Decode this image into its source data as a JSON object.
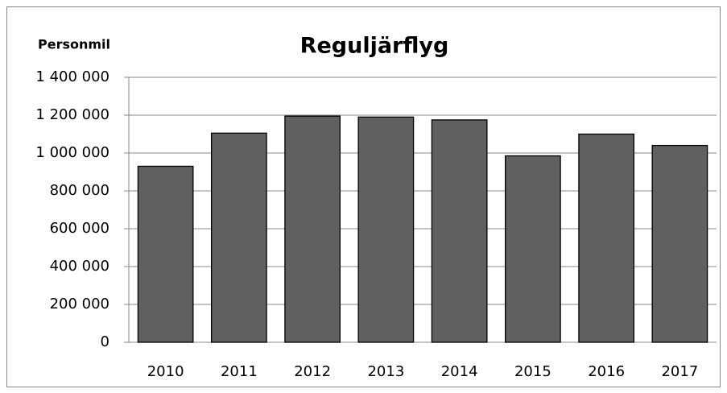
{
  "chart_data": {
    "type": "bar",
    "title": "Reguljärflyg",
    "y_axis_label": "Personmil",
    "categories": [
      "2010",
      "2011",
      "2012",
      "2013",
      "2014",
      "2015",
      "2016",
      "2017"
    ],
    "values": [
      930000,
      1105000,
      1195000,
      1190000,
      1175000,
      985000,
      1100000,
      1040000
    ],
    "color": "#606060",
    "ylim": [
      0,
      1400000
    ],
    "yticks": [
      0,
      {
        "value": 200000,
        "label": "200 000"
      },
      {
        "value": 400000,
        "label": "400 000"
      },
      {
        "value": 600000,
        "label": "600 000"
      },
      {
        "value": 800000,
        "label": "800 000"
      },
      {
        "value": 1000000,
        "label": "1 000 000"
      },
      {
        "value": 1200000,
        "label": "1 200 000"
      },
      {
        "value": 1400000,
        "label": "1 400 000"
      }
    ],
    "grid": true
  }
}
